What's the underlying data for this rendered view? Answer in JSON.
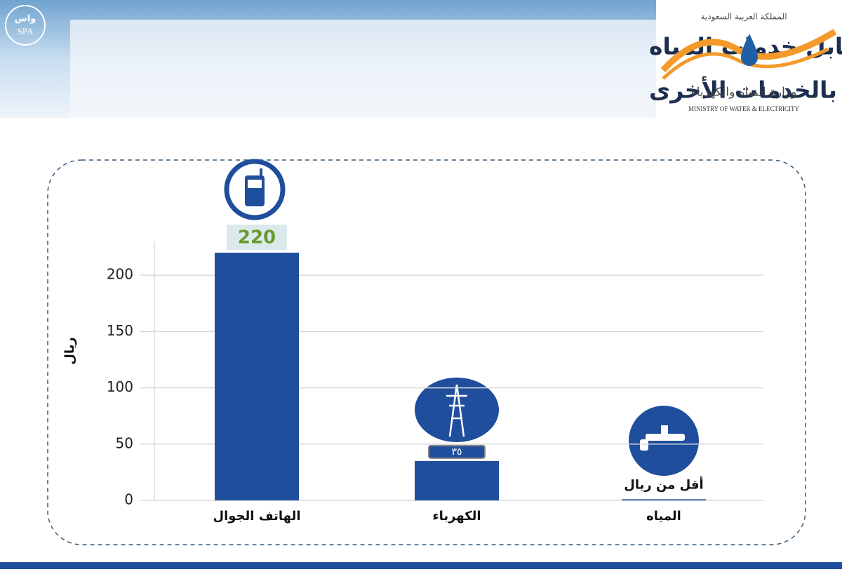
{
  "header": {
    "title_lines": [
      "مقدار ما يدفعه المستهلك مقابل خدمات المياه",
      "والصرف الصحي سنوياً مقارنة بالخدمات الأخرى"
    ],
    "agency": {
      "arabic": "واس",
      "latin": "SPA"
    },
    "ministry": {
      "kingdom": "المملكة العربية السعودية",
      "name": "وزارة المياه والكهرباء",
      "english": "MINISTRY OF WATER & ELECTRICITY"
    }
  },
  "chart_data": {
    "type": "bar",
    "y_label": "ريال",
    "categories": [
      "الهاتف الجوال",
      "الكهرباء",
      "المياه"
    ],
    "values": [
      220,
      35,
      1
    ],
    "value_labels": [
      "220",
      "٣٥",
      "أقل من ريال"
    ],
    "color": "#1f4e9c",
    "ylim": [
      0,
      230
    ],
    "yticks": [
      0,
      50,
      100,
      150,
      200
    ],
    "grid": true
  }
}
